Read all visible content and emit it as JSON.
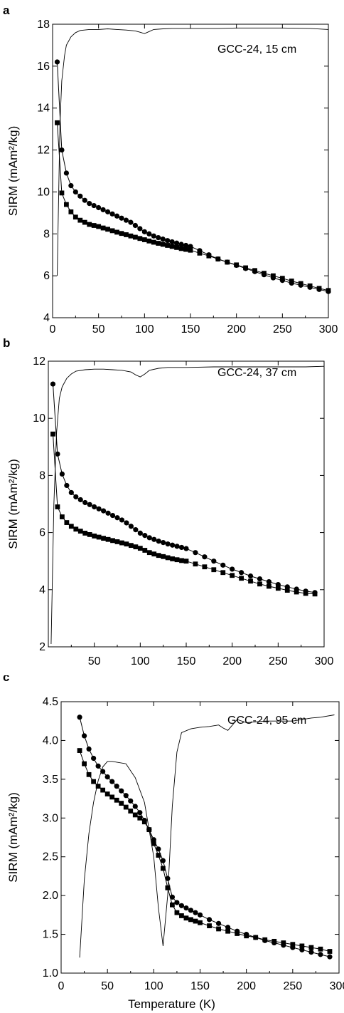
{
  "chart_data": [
    {
      "type": "line",
      "panel_letter": "a",
      "annotation": "GCC-24, 15 cm",
      "xlabel": "Temperature (K)",
      "ylabel": "SIRM (mAm²/kg)",
      "xlim": [
        0,
        300
      ],
      "ylim": [
        4,
        18
      ],
      "xticks": [
        "0",
        "50",
        "100",
        "150",
        "200",
        "250",
        "300"
      ],
      "yticks": [
        "4",
        "6",
        "8",
        "10",
        "12",
        "14",
        "16",
        "18"
      ],
      "series": [
        {
          "marker": "circle",
          "x": [
            5,
            10,
            15,
            20,
            25,
            30,
            35,
            40,
            45,
            50,
            55,
            60,
            65,
            70,
            75,
            80,
            85,
            90,
            95,
            100,
            105,
            110,
            115,
            120,
            125,
            130,
            135,
            140,
            145,
            150,
            160,
            170,
            180,
            190,
            200,
            210,
            220,
            230,
            240,
            250,
            260,
            270,
            280,
            290,
            300
          ],
          "y": [
            16.2,
            12.0,
            10.9,
            10.3,
            10.0,
            9.8,
            9.6,
            9.45,
            9.35,
            9.25,
            9.15,
            9.05,
            8.95,
            8.85,
            8.75,
            8.65,
            8.55,
            8.4,
            8.25,
            8.1,
            8.0,
            7.9,
            7.82,
            7.75,
            7.68,
            7.62,
            7.56,
            7.5,
            7.45,
            7.4,
            7.2,
            7.0,
            6.8,
            6.65,
            6.5,
            6.35,
            6.2,
            6.05,
            5.9,
            5.78,
            5.65,
            5.55,
            5.45,
            5.35,
            5.25
          ]
        },
        {
          "marker": "square",
          "x": [
            5,
            10,
            15,
            20,
            25,
            30,
            35,
            40,
            45,
            50,
            55,
            60,
            65,
            70,
            75,
            80,
            85,
            90,
            95,
            100,
            105,
            110,
            115,
            120,
            125,
            130,
            135,
            140,
            145,
            150,
            160,
            170,
            180,
            190,
            200,
            210,
            220,
            230,
            240,
            250,
            260,
            270,
            280,
            290,
            300
          ],
          "y": [
            13.3,
            9.95,
            9.4,
            9.05,
            8.8,
            8.65,
            8.55,
            8.45,
            8.4,
            8.35,
            8.28,
            8.22,
            8.15,
            8.08,
            8.02,
            7.96,
            7.9,
            7.84,
            7.78,
            7.72,
            7.66,
            7.6,
            7.55,
            7.5,
            7.45,
            7.4,
            7.35,
            7.3,
            7.26,
            7.22,
            7.08,
            6.95,
            6.8,
            6.65,
            6.52,
            6.38,
            6.25,
            6.12,
            6.0,
            5.88,
            5.75,
            5.63,
            5.52,
            5.4,
            5.3
          ]
        },
        {
          "marker": "none",
          "x": [
            5,
            8,
            10,
            13,
            15,
            20,
            25,
            30,
            40,
            50,
            60,
            70,
            80,
            90,
            95,
            100,
            105,
            110,
            120,
            130,
            150,
            180,
            200,
            250,
            280,
            300
          ],
          "y": [
            6.0,
            13.2,
            15.3,
            16.5,
            17.0,
            17.4,
            17.6,
            17.7,
            17.75,
            17.75,
            17.78,
            17.75,
            17.72,
            17.68,
            17.62,
            17.55,
            17.65,
            17.75,
            17.78,
            17.8,
            17.8,
            17.8,
            17.82,
            17.82,
            17.8,
            17.75
          ]
        }
      ]
    },
    {
      "type": "line",
      "panel_letter": "b",
      "annotation": "GCC-24, 37 cm",
      "xlabel": "Temperature (K)",
      "ylabel": "SIRM (mAm²/kg)",
      "xlim": [
        0,
        300
      ],
      "ylim": [
        2,
        12
      ],
      "xticks": [
        "50",
        "100",
        "150",
        "200",
        "250",
        "300"
      ],
      "yticks": [
        "2",
        "4",
        "6",
        "8",
        "10",
        "12"
      ],
      "series": [
        {
          "marker": "circle",
          "x": [
            5,
            10,
            15,
            20,
            25,
            30,
            35,
            40,
            45,
            50,
            55,
            60,
            65,
            70,
            75,
            80,
            85,
            90,
            95,
            100,
            105,
            110,
            115,
            120,
            125,
            130,
            135,
            140,
            145,
            150,
            160,
            170,
            180,
            190,
            200,
            210,
            220,
            230,
            240,
            250,
            260,
            270,
            280,
            290
          ],
          "y": [
            11.2,
            8.75,
            8.05,
            7.65,
            7.4,
            7.25,
            7.15,
            7.05,
            6.98,
            6.9,
            6.83,
            6.76,
            6.68,
            6.6,
            6.52,
            6.44,
            6.34,
            6.22,
            6.1,
            5.98,
            5.9,
            5.82,
            5.76,
            5.7,
            5.65,
            5.6,
            5.56,
            5.52,
            5.48,
            5.44,
            5.3,
            5.15,
            5.0,
            4.86,
            4.72,
            4.6,
            4.48,
            4.38,
            4.28,
            4.18,
            4.1,
            4.02,
            3.95,
            3.9
          ]
        },
        {
          "marker": "square",
          "x": [
            5,
            10,
            15,
            20,
            25,
            30,
            35,
            40,
            45,
            50,
            55,
            60,
            65,
            70,
            75,
            80,
            85,
            90,
            95,
            100,
            105,
            110,
            115,
            120,
            125,
            130,
            135,
            140,
            145,
            150,
            160,
            170,
            180,
            190,
            200,
            210,
            220,
            230,
            240,
            250,
            260,
            270,
            280,
            290
          ],
          "y": [
            9.45,
            6.9,
            6.55,
            6.35,
            6.22,
            6.12,
            6.05,
            5.98,
            5.93,
            5.88,
            5.84,
            5.8,
            5.76,
            5.72,
            5.68,
            5.64,
            5.6,
            5.55,
            5.5,
            5.45,
            5.38,
            5.3,
            5.25,
            5.2,
            5.16,
            5.12,
            5.08,
            5.05,
            5.02,
            5.0,
            4.9,
            4.8,
            4.7,
            4.6,
            4.5,
            4.4,
            4.3,
            4.2,
            4.12,
            4.05,
            3.98,
            3.92,
            3.87,
            3.85
          ]
        },
        {
          "marker": "none",
          "x": [
            3,
            6,
            9,
            12,
            15,
            20,
            25,
            30,
            40,
            50,
            60,
            70,
            80,
            90,
            95,
            100,
            105,
            110,
            120,
            130,
            150,
            180,
            200,
            250,
            280,
            300
          ],
          "y": [
            2.1,
            7.0,
            9.5,
            10.7,
            11.1,
            11.4,
            11.55,
            11.65,
            11.7,
            11.72,
            11.72,
            11.7,
            11.68,
            11.62,
            11.52,
            11.45,
            11.55,
            11.68,
            11.75,
            11.78,
            11.78,
            11.8,
            11.8,
            11.8,
            11.8,
            11.82
          ]
        }
      ]
    },
    {
      "type": "line",
      "panel_letter": "c",
      "annotation": "GCC-24, 95 cm",
      "xlabel": "Temperature (K)",
      "ylabel": "SIRM (mAm²/kg)",
      "xlim": [
        0,
        300
      ],
      "ylim": [
        1.0,
        4.5
      ],
      "xticks": [
        "0",
        "50",
        "100",
        "150",
        "200",
        "250",
        "300"
      ],
      "yticks": [
        "1.0",
        "1.5",
        "2.0",
        "2.5",
        "3.0",
        "3.5",
        "4.0",
        "4.5"
      ],
      "series": [
        {
          "marker": "circle",
          "x": [
            20,
            25,
            30,
            35,
            40,
            45,
            50,
            55,
            60,
            65,
            70,
            75,
            80,
            85,
            90,
            95,
            100,
            105,
            110,
            115,
            120,
            125,
            130,
            135,
            140,
            145,
            150,
            160,
            170,
            180,
            190,
            200,
            210,
            220,
            230,
            240,
            250,
            260,
            270,
            280,
            290
          ],
          "y": [
            4.3,
            4.06,
            3.89,
            3.77,
            3.67,
            3.6,
            3.53,
            3.47,
            3.41,
            3.35,
            3.29,
            3.22,
            3.15,
            3.07,
            2.97,
            2.85,
            2.72,
            2.6,
            2.45,
            2.22,
            1.98,
            1.91,
            1.87,
            1.84,
            1.81,
            1.78,
            1.75,
            1.69,
            1.64,
            1.59,
            1.54,
            1.5,
            1.46,
            1.42,
            1.39,
            1.36,
            1.33,
            1.3,
            1.27,
            1.24,
            1.21
          ]
        },
        {
          "marker": "square",
          "x": [
            20,
            25,
            30,
            35,
            40,
            45,
            50,
            55,
            60,
            65,
            70,
            75,
            80,
            85,
            90,
            95,
            100,
            105,
            110,
            115,
            120,
            125,
            130,
            135,
            140,
            145,
            150,
            160,
            170,
            180,
            190,
            200,
            210,
            220,
            230,
            240,
            250,
            260,
            270,
            280,
            290
          ],
          "y": [
            3.87,
            3.7,
            3.56,
            3.47,
            3.41,
            3.36,
            3.31,
            3.27,
            3.23,
            3.19,
            3.14,
            3.09,
            3.04,
            3.0,
            2.95,
            2.85,
            2.67,
            2.52,
            2.35,
            2.1,
            1.88,
            1.78,
            1.74,
            1.71,
            1.69,
            1.67,
            1.65,
            1.61,
            1.57,
            1.54,
            1.51,
            1.48,
            1.46,
            1.43,
            1.41,
            1.39,
            1.37,
            1.35,
            1.33,
            1.31,
            1.28
          ]
        },
        {
          "marker": "none",
          "x": [
            20,
            25,
            30,
            35,
            40,
            45,
            50,
            55,
            60,
            70,
            80,
            90,
            100,
            105,
            110,
            115,
            120,
            125,
            130,
            140,
            150,
            160,
            170,
            175,
            180,
            185,
            190,
            200,
            220,
            250,
            270,
            280,
            295
          ],
          "y": [
            1.2,
            2.2,
            2.8,
            3.2,
            3.48,
            3.66,
            3.73,
            3.73,
            3.72,
            3.7,
            3.52,
            3.2,
            2.5,
            1.85,
            1.35,
            2.0,
            3.15,
            3.85,
            4.1,
            4.15,
            4.17,
            4.18,
            4.2,
            4.16,
            4.13,
            4.2,
            4.27,
            4.23,
            4.25,
            4.25,
            4.29,
            4.3,
            4.33
          ]
        }
      ]
    }
  ]
}
